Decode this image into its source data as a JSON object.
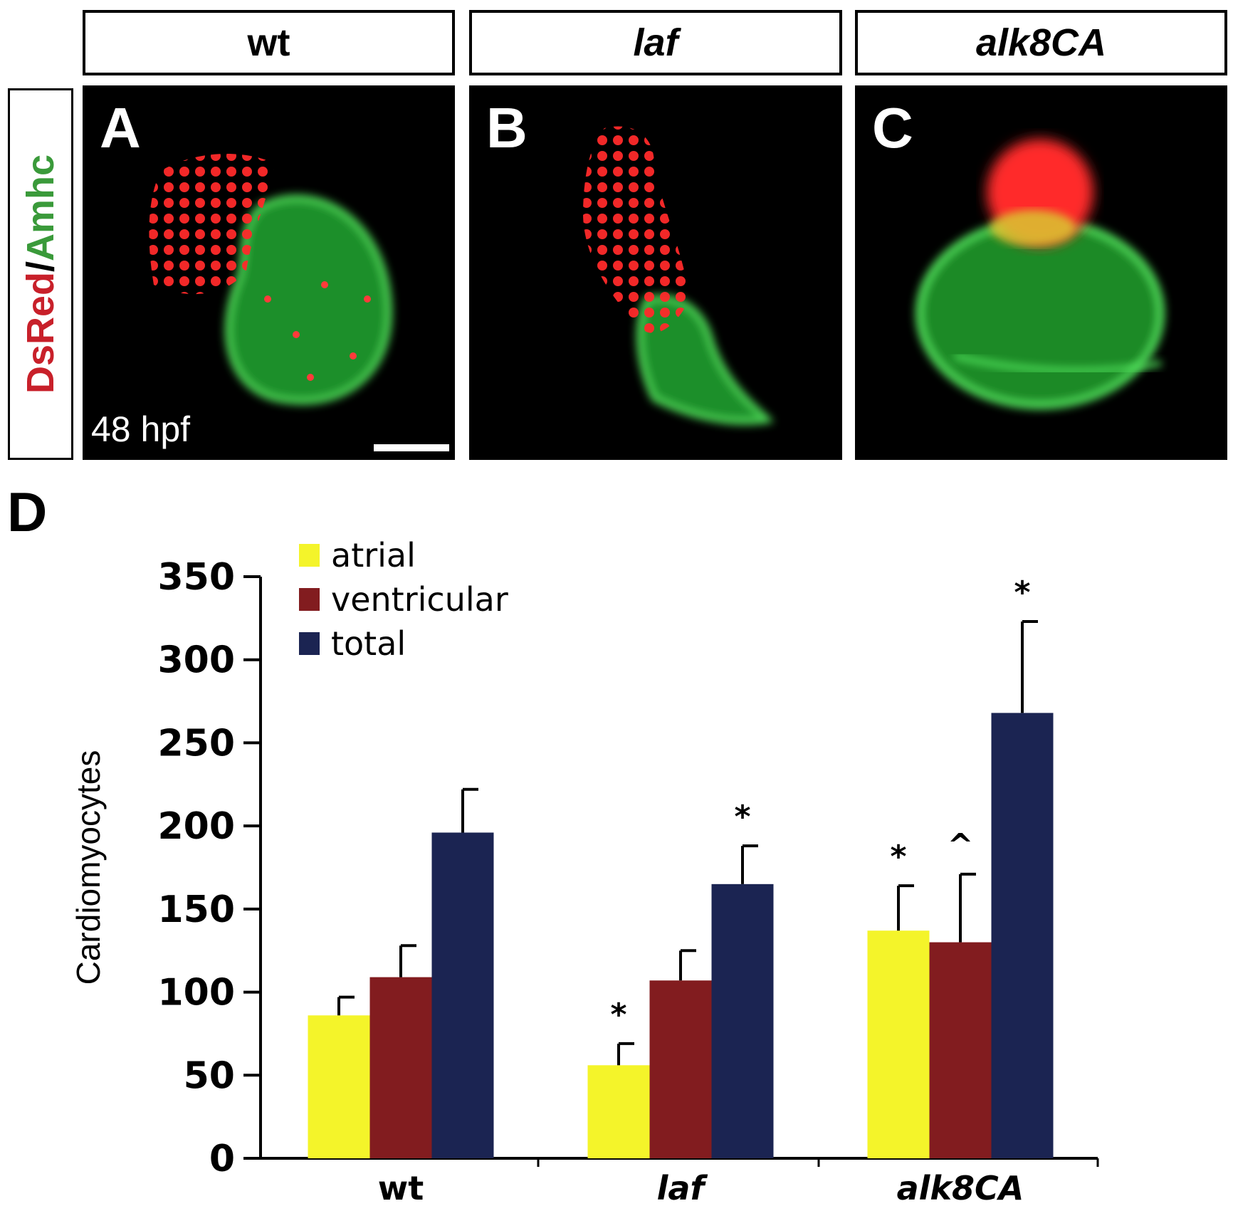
{
  "headers": [
    "wt",
    "laf",
    "alk8CA"
  ],
  "stain_label": {
    "red": "DsRed",
    "sep": "/",
    "green": "Amhc"
  },
  "panels": [
    {
      "label": "A",
      "stage": "48 hpf"
    },
    {
      "label": "B"
    },
    {
      "label": "C"
    }
  ],
  "panel_d_label": "D",
  "colors": {
    "atrial": "#f4f42a",
    "ventricular": "#821c1f",
    "total": "#1b2452",
    "dsred": "#e0242b",
    "amhc": "#2fbf3a"
  },
  "chart_data": {
    "type": "bar",
    "categories": [
      "wt",
      "laf",
      "alk8CA"
    ],
    "series": [
      {
        "name": "atrial",
        "values": [
          86,
          56,
          137
        ],
        "errors": [
          11,
          13,
          27
        ],
        "marks": [
          "",
          "*",
          "*"
        ]
      },
      {
        "name": "ventricular",
        "values": [
          109,
          107,
          130
        ],
        "errors": [
          19,
          18,
          41
        ],
        "marks": [
          "",
          "",
          "^"
        ]
      },
      {
        "name": "total",
        "values": [
          196,
          165,
          268
        ],
        "errors": [
          26,
          23,
          55
        ],
        "marks": [
          "",
          "*",
          "*"
        ]
      }
    ],
    "ylabel": "Cardiomyocytes",
    "ylim": [
      0,
      350
    ],
    "yticks": [
      0,
      50,
      100,
      150,
      200,
      250,
      300,
      350
    ],
    "grid": false,
    "legend": "top-left"
  }
}
